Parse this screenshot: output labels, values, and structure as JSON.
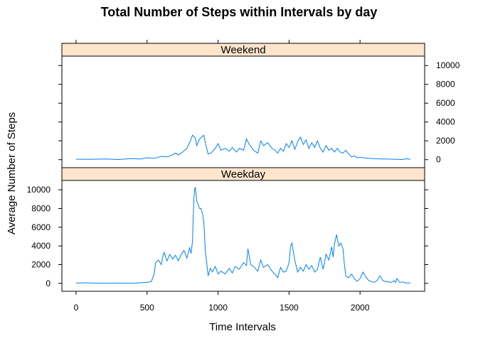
{
  "chart_data": {
    "type": "line",
    "title": "Total Number of Steps within Intervals by day",
    "xlabel": "Time Intervals",
    "ylabel": "Average Number of Steps",
    "xlim": [
      -100,
      2455
    ],
    "ylim": [
      -850,
      11000
    ],
    "x_ticks": [
      0,
      500,
      1000,
      1500,
      2000
    ],
    "y_ticks": [
      0,
      2000,
      4000,
      6000,
      8000,
      10000
    ],
    "line_color": "#0080ff",
    "strip_color": "#ffe5cc",
    "grid": false,
    "panels": [
      {
        "name": "Weekend",
        "series": [
          {
            "points": [
              [
                0,
                50
              ],
              [
                100,
                30
              ],
              [
                200,
                80
              ],
              [
                300,
                20
              ],
              [
                400,
                120
              ],
              [
                450,
                60
              ],
              [
                500,
                200
              ],
              [
                550,
                150
              ],
              [
                600,
                350
              ],
              [
                650,
                300
              ],
              [
                700,
                700
              ],
              [
                720,
                500
              ],
              [
                750,
                800
              ],
              [
                780,
                1200
              ],
              [
                800,
                1800
              ],
              [
                820,
                2600
              ],
              [
                840,
                2300
              ],
              [
                850,
                1500
              ],
              [
                870,
                2200
              ],
              [
                900,
                2600
              ],
              [
                910,
                1800
              ],
              [
                930,
                600
              ],
              [
                950,
                700
              ],
              [
                980,
                1200
              ],
              [
                1000,
                1700
              ],
              [
                1020,
                1000
              ],
              [
                1050,
                1200
              ],
              [
                1080,
                900
              ],
              [
                1100,
                1300
              ],
              [
                1130,
                800
              ],
              [
                1150,
                1200
              ],
              [
                1180,
                1000
              ],
              [
                1200,
                2200
              ],
              [
                1220,
                1600
              ],
              [
                1250,
                1000
              ],
              [
                1280,
                700
              ],
              [
                1300,
                2000
              ],
              [
                1320,
                1500
              ],
              [
                1350,
                1800
              ],
              [
                1380,
                1200
              ],
              [
                1400,
                1000
              ],
              [
                1420,
                700
              ],
              [
                1440,
                1200
              ],
              [
                1460,
                900
              ],
              [
                1480,
                1700
              ],
              [
                1500,
                1300
              ],
              [
                1520,
                2000
              ],
              [
                1540,
                1100
              ],
              [
                1560,
                1900
              ],
              [
                1580,
                2400
              ],
              [
                1600,
                1600
              ],
              [
                1620,
                2100
              ],
              [
                1640,
                1200
              ],
              [
                1660,
                1800
              ],
              [
                1680,
                1300
              ],
              [
                1700,
                2000
              ],
              [
                1720,
                1200
              ],
              [
                1740,
                800
              ],
              [
                1760,
                1500
              ],
              [
                1780,
                1000
              ],
              [
                1800,
                1200
              ],
              [
                1820,
                800
              ],
              [
                1840,
                1200
              ],
              [
                1860,
                800
              ],
              [
                1880,
                700
              ],
              [
                1900,
                1000
              ],
              [
                1920,
                600
              ],
              [
                1940,
                300
              ],
              [
                1960,
                400
              ],
              [
                1980,
                200
              ],
              [
                2000,
                250
              ],
              [
                2050,
                150
              ],
              [
                2100,
                100
              ],
              [
                2150,
                80
              ],
              [
                2200,
                60
              ],
              [
                2250,
                40
              ],
              [
                2300,
                20
              ],
              [
                2330,
                100
              ],
              [
                2355,
                30
              ]
            ]
          }
        ]
      },
      {
        "name": "Weekday",
        "series": [
          {
            "points": [
              [
                0,
                50
              ],
              [
                30,
                20
              ],
              [
                60,
                60
              ],
              [
                100,
                30
              ],
              [
                200,
                10
              ],
              [
                300,
                20
              ],
              [
                400,
                10
              ],
              [
                450,
                60
              ],
              [
                500,
                100
              ],
              [
                530,
                200
              ],
              [
                550,
                1000
              ],
              [
                560,
                2200
              ],
              [
                580,
                2500
              ],
              [
                600,
                2000
              ],
              [
                610,
                2800
              ],
              [
                620,
                3300
              ],
              [
                640,
                2400
              ],
              [
                660,
                3100
              ],
              [
                680,
                2600
              ],
              [
                700,
                3000
              ],
              [
                720,
                2400
              ],
              [
                740,
                3100
              ],
              [
                760,
                3500
              ],
              [
                780,
                2700
              ],
              [
                800,
                3800
              ],
              [
                810,
                3200
              ],
              [
                820,
                4500
              ],
              [
                825,
                7000
              ],
              [
                830,
                9000
              ],
              [
                835,
                10000
              ],
              [
                840,
                10300
              ],
              [
                850,
                8800
              ],
              [
                860,
                8400
              ],
              [
                870,
                8000
              ],
              [
                880,
                8000
              ],
              [
                890,
                7500
              ],
              [
                900,
                6500
              ],
              [
                910,
                3500
              ],
              [
                920,
                2200
              ],
              [
                930,
                800
              ],
              [
                945,
                1600
              ],
              [
                960,
                1200
              ],
              [
                980,
                1800
              ],
              [
                1000,
                1000
              ],
              [
                1020,
                1300
              ],
              [
                1050,
                1000
              ],
              [
                1080,
                1600
              ],
              [
                1100,
                1100
              ],
              [
                1120,
                1800
              ],
              [
                1150,
                1500
              ],
              [
                1180,
                2200
              ],
              [
                1200,
                1900
              ],
              [
                1210,
                3700
              ],
              [
                1230,
                2000
              ],
              [
                1250,
                1800
              ],
              [
                1280,
                1300
              ],
              [
                1300,
                2500
              ],
              [
                1320,
                1700
              ],
              [
                1350,
                2000
              ],
              [
                1380,
                1300
              ],
              [
                1400,
                1000
              ],
              [
                1420,
                600
              ],
              [
                1440,
                1700
              ],
              [
                1460,
                1200
              ],
              [
                1480,
                1300
              ],
              [
                1500,
                2200
              ],
              [
                1510,
                3900
              ],
              [
                1520,
                4300
              ],
              [
                1540,
                2500
              ],
              [
                1560,
                1200
              ],
              [
                1580,
                1700
              ],
              [
                1600,
                1300
              ],
              [
                1620,
                2000
              ],
              [
                1640,
                1500
              ],
              [
                1660,
                1900
              ],
              [
                1680,
                1200
              ],
              [
                1700,
                1500
              ],
              [
                1720,
                2800
              ],
              [
                1740,
                1500
              ],
              [
                1760,
                3100
              ],
              [
                1780,
                2500
              ],
              [
                1800,
                3900
              ],
              [
                1810,
                2800
              ],
              [
                1820,
                4200
              ],
              [
                1835,
                5200
              ],
              [
                1850,
                4000
              ],
              [
                1865,
                4300
              ],
              [
                1880,
                3700
              ],
              [
                1890,
                2000
              ],
              [
                1900,
                800
              ],
              [
                1920,
                600
              ],
              [
                1940,
                1000
              ],
              [
                1960,
                500
              ],
              [
                1980,
                200
              ],
              [
                2000,
                500
              ],
              [
                2020,
                1200
              ],
              [
                2040,
                700
              ],
              [
                2060,
                300
              ],
              [
                2080,
                200
              ],
              [
                2100,
                100
              ],
              [
                2120,
                300
              ],
              [
                2140,
                800
              ],
              [
                2160,
                300
              ],
              [
                2180,
                200
              ],
              [
                2200,
                150
              ],
              [
                2220,
                100
              ],
              [
                2240,
                300
              ],
              [
                2250,
                100
              ],
              [
                2260,
                500
              ],
              [
                2280,
                100
              ],
              [
                2300,
                150
              ],
              [
                2320,
                50
              ],
              [
                2355,
                50
              ]
            ]
          }
        ]
      }
    ]
  }
}
